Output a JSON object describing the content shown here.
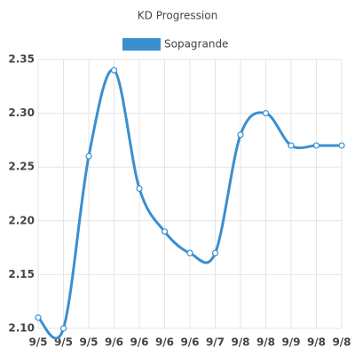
{
  "chart_data": {
    "type": "line",
    "title": "KD Progression",
    "categories": [
      "9/5",
      "9/5",
      "9/5",
      "9/6",
      "9/6",
      "9/6",
      "9/6",
      "9/7",
      "9/8",
      "9/8",
      "9/9",
      "9/8",
      "9/8"
    ],
    "series": [
      {
        "name": "Sopagrande",
        "color": "#3a8fcf",
        "values": [
          2.11,
          2.1,
          2.26,
          2.34,
          2.23,
          2.19,
          2.17,
          2.17,
          2.28,
          2.3,
          2.27,
          2.27,
          2.27
        ]
      }
    ],
    "ylim": [
      2.1,
      2.35
    ],
    "yticks": [
      {
        "value": 2.1,
        "label": "2.10"
      },
      2.15,
      {
        "value": 2.2,
        "label": "2.20"
      },
      2.25,
      {
        "value": 2.3,
        "label": "2.30"
      },
      2.35
    ],
    "grid": true
  }
}
